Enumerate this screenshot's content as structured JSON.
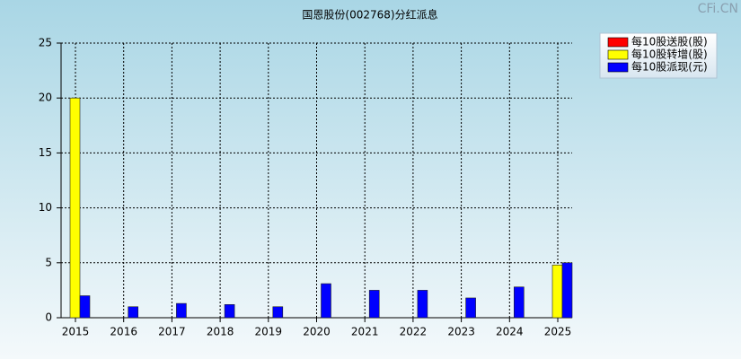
{
  "chart_data": {
    "type": "bar",
    "title": "国恩股份(002768)分红派息",
    "watermark": "CFi.CN",
    "categories": [
      "2015",
      "2016",
      "2017",
      "2018",
      "2019",
      "2020",
      "2021",
      "2022",
      "2023",
      "2024",
      "2025"
    ],
    "series": [
      {
        "name": "每10股送股(股)",
        "color": "#ff0000",
        "values": [
          0,
          0,
          0,
          0,
          0,
          0,
          0,
          0,
          0,
          0,
          0
        ]
      },
      {
        "name": "每10股转增(股)",
        "color": "#ffff00",
        "values": [
          20,
          0,
          0,
          0,
          0,
          0,
          0,
          0,
          0,
          0,
          4.8
        ]
      },
      {
        "name": "每10股派现(元)",
        "color": "#0000ff",
        "values": [
          2.0,
          1.0,
          1.3,
          1.2,
          1.0,
          3.1,
          2.5,
          2.5,
          1.8,
          2.8,
          5.0
        ]
      }
    ],
    "ylim": [
      0,
      25
    ],
    "yticks": [
      0,
      5,
      10,
      15,
      20,
      25
    ],
    "grid": true,
    "legend": "top-right"
  }
}
